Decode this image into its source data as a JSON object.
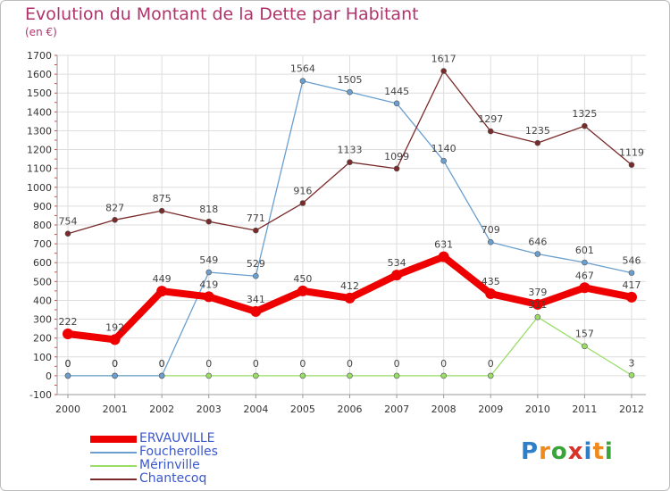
{
  "header": {
    "title": "Evolution du Montant de la Dette par Habitant",
    "subtitle": "(en €)"
  },
  "logo": {
    "text": "Proxiti"
  },
  "chart_data": {
    "type": "line",
    "title": "Evolution du Montant de la Dette par Habitant",
    "subtitle": "(en €)",
    "xlabel": "",
    "ylabel": "",
    "x": [
      "2000",
      "2001",
      "2002",
      "2003",
      "2004",
      "2005",
      "2006",
      "2007",
      "2008",
      "2009",
      "2010",
      "2011",
      "2012"
    ],
    "ylim": [
      -100,
      1700
    ],
    "yticks": [
      -100,
      0,
      100,
      200,
      300,
      400,
      500,
      600,
      700,
      800,
      900,
      1000,
      1100,
      1200,
      1300,
      1400,
      1500,
      1600,
      1700
    ],
    "grid": true,
    "legend_position": "bottom-left",
    "series": [
      {
        "name": "ERVAUVILLE",
        "color": "#ee0000",
        "width": 8,
        "values": [
          222,
          192,
          449,
          419,
          341,
          450,
          412,
          534,
          631,
          435,
          379,
          467,
          417
        ]
      },
      {
        "name": "Foucherolles",
        "color": "#6a9fcf",
        "width": 1.3,
        "values": [
          0,
          0,
          0,
          549,
          529,
          1564,
          1505,
          1445,
          1140,
          709,
          646,
          601,
          546
        ]
      },
      {
        "name": "Mérinville",
        "color": "#99dd66",
        "width": 1.3,
        "values": [
          0,
          0,
          0,
          0,
          0,
          0,
          0,
          0,
          0,
          0,
          311,
          157,
          3
        ]
      },
      {
        "name": "Chantecoq",
        "color": "#7a2a2a",
        "width": 1.3,
        "values": [
          754,
          827,
          875,
          818,
          771,
          916,
          1133,
          1099,
          1617,
          1297,
          1235,
          1325,
          1119
        ]
      }
    ]
  }
}
